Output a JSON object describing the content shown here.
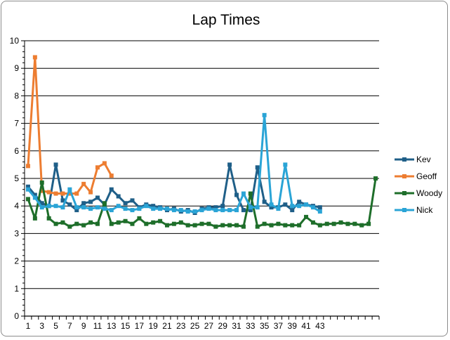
{
  "chart_data": {
    "type": "line",
    "title": "Lap Times",
    "xlabel": "",
    "ylabel": "",
    "ylim": [
      0,
      10
    ],
    "y_ticks": [
      "0",
      "1",
      "2",
      "3",
      "4",
      "5",
      "6",
      "7",
      "8",
      "9",
      "10"
    ],
    "x_ticks": [
      "1",
      "3",
      "5",
      "7",
      "9",
      "11",
      "13",
      "15",
      "17",
      "19",
      "21",
      "23",
      "25",
      "27",
      "29",
      "31",
      "33",
      "35",
      "37",
      "39",
      "41",
      "43"
    ],
    "x_max": 51,
    "grid": "horizontal",
    "legend_position": "right",
    "series": [
      {
        "name": "Kev",
        "color": "#1f5f88",
        "values": [
          4.7,
          4.4,
          4.1,
          4.0,
          5.5,
          4.2,
          4.05,
          3.85,
          4.1,
          4.15,
          4.3,
          4.05,
          4.6,
          4.35,
          4.1,
          4.2,
          3.95,
          4.05,
          4.0,
          3.95,
          3.85,
          3.9,
          3.8,
          3.85,
          3.75,
          3.9,
          3.95,
          3.95,
          4.0,
          5.5,
          4.4,
          3.85,
          3.85,
          5.4,
          4.15,
          3.95,
          3.95,
          4.05,
          3.85,
          4.15,
          4.05,
          4.0,
          3.95
        ]
      },
      {
        "name": "Geoff",
        "color": "#ed7d31",
        "values": [
          5.45,
          9.4,
          4.55,
          4.5,
          4.45,
          4.45,
          4.45,
          4.45,
          4.8,
          4.5,
          5.4,
          5.55,
          5.1
        ]
      },
      {
        "name": "Woody",
        "color": "#1e6e2a",
        "values": [
          4.25,
          3.55,
          4.85,
          3.55,
          3.35,
          3.4,
          3.25,
          3.35,
          3.3,
          3.4,
          3.35,
          4.1,
          3.35,
          3.4,
          3.45,
          3.35,
          3.55,
          3.35,
          3.4,
          3.45,
          3.3,
          3.35,
          3.4,
          3.3,
          3.3,
          3.35,
          3.35,
          3.25,
          3.3,
          3.3,
          3.3,
          3.25,
          4.45,
          3.25,
          3.35,
          3.3,
          3.35,
          3.3,
          3.3,
          3.3,
          3.6,
          3.4,
          3.3,
          3.35,
          3.35,
          3.4,
          3.35,
          3.35,
          3.3,
          3.35,
          5.0
        ]
      },
      {
        "name": "Nick",
        "color": "#2aa4d6",
        "values": [
          4.6,
          4.3,
          3.95,
          4.0,
          4.0,
          3.95,
          4.6,
          3.95,
          3.95,
          3.9,
          3.95,
          3.9,
          3.85,
          4.0,
          3.9,
          3.85,
          3.9,
          4.0,
          3.9,
          3.9,
          3.9,
          3.85,
          3.85,
          3.8,
          3.8,
          3.85,
          3.9,
          3.85,
          3.85,
          3.85,
          3.85,
          4.45,
          3.95,
          3.95,
          7.3,
          4.05,
          3.9,
          5.5,
          4.0,
          4.0,
          4.05,
          3.95,
          3.8
        ]
      }
    ]
  }
}
